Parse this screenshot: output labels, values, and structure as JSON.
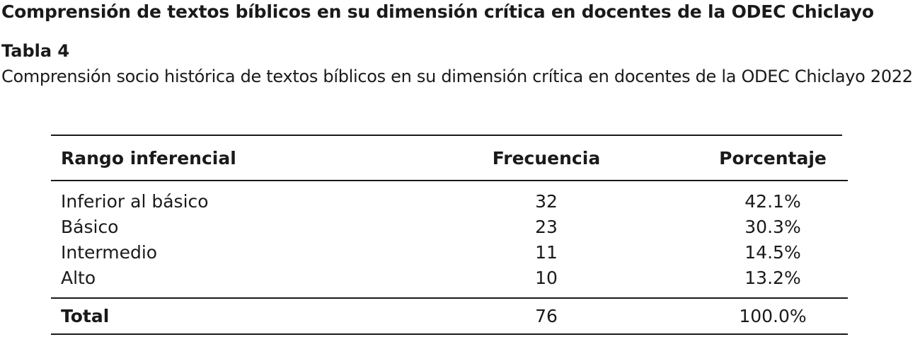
{
  "heading": "Comprensión de textos bíblicos en su dimensión crítica en docentes de la ODEC Chiclayo",
  "table_label": "Tabla 4",
  "caption": "Comprensión socio histórica de textos bíblicos en su dimensión crítica en docentes de la ODEC Chiclayo 2022",
  "table": {
    "headers": [
      "Rango inferencial",
      "Frecuencia",
      "Porcentaje"
    ],
    "rows": [
      [
        "Inferior al básico",
        "32",
        "42.1%"
      ],
      [
        "Básico",
        "23",
        "30.3%"
      ],
      [
        "Intermedio",
        "11",
        "14.5%"
      ],
      [
        "Alto",
        "10",
        "13.2%"
      ]
    ],
    "total": [
      "Total",
      "76",
      "100.0%"
    ]
  }
}
